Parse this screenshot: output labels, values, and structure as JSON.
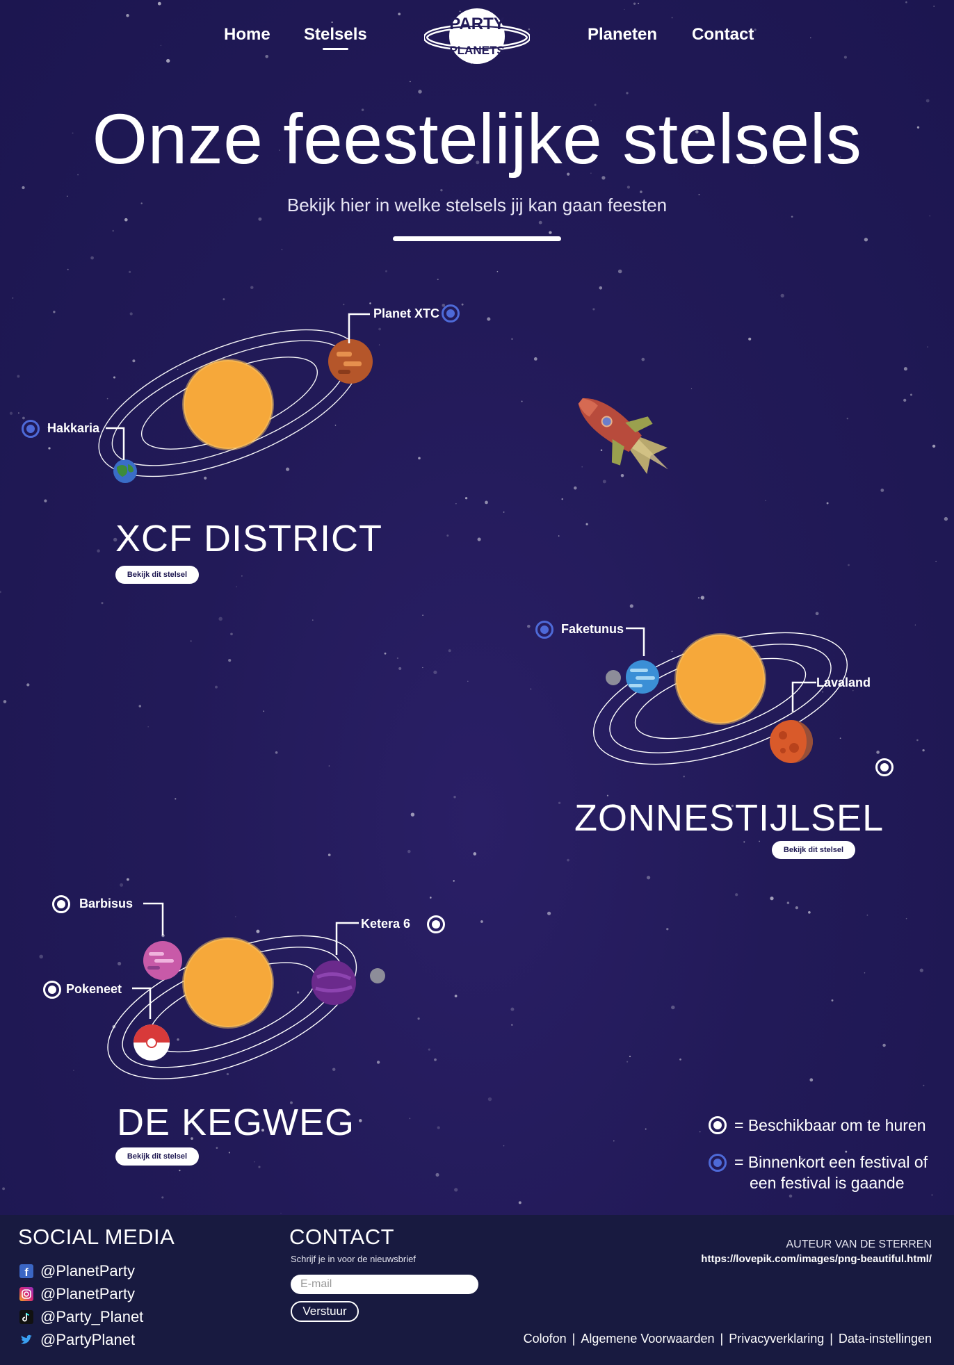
{
  "nav": {
    "home": "Home",
    "stelsels": "Stelsels",
    "planeten": "Planeten",
    "contact": "Contact",
    "logo_line1": "PARTY",
    "logo_line2": "PLANETS"
  },
  "hero": {
    "title": "Onze feestelijke stelsels",
    "subtitle": "Bekijk hier in welke stelsels jij kan gaan feesten"
  },
  "systems": [
    {
      "title": "XCF DISTRICT",
      "button": "Bekijk dit stelsel",
      "planets": [
        {
          "name": "Planet XTC",
          "marker": "soon"
        },
        {
          "name": "Hakkaria",
          "marker": "soon"
        }
      ]
    },
    {
      "title": "ZONNESTIJLSEL",
      "button": "Bekijk dit stelsel",
      "planets": [
        {
          "name": "Faketunus",
          "marker": "soon"
        },
        {
          "name": "Lavaland",
          "marker": "rent"
        }
      ]
    },
    {
      "title": "DE KEGWEG",
      "button": "Bekijk dit stelsel",
      "planets": [
        {
          "name": "Barbisus",
          "marker": "rent"
        },
        {
          "name": "Pokeneet",
          "marker": "rent"
        },
        {
          "name": "Ketera 6",
          "marker": "rent"
        }
      ]
    }
  ],
  "legend": {
    "rent": "= Beschikbaar om te huren",
    "soon_line1": "= Binnenkort een festival of",
    "soon_line2": "een festival is gaande"
  },
  "footer": {
    "social_title": "SOCIAL MEDIA",
    "social": [
      {
        "icon": "facebook-icon",
        "handle": "@PlanetParty"
      },
      {
        "icon": "instagram-icon",
        "handle": "@PlanetParty"
      },
      {
        "icon": "tiktok-icon",
        "handle": "@Party_Planet"
      },
      {
        "icon": "twitter-icon",
        "handle": "@PartyPlanet"
      }
    ],
    "contact_title": "CONTACT",
    "newsletter": "Schrijf je in voor de nieuwsbrief",
    "email_placeholder": "E-mail",
    "send": "Verstuur",
    "author_title": "AUTEUR VAN DE STERREN",
    "author_url": "https://lovepik.com/images/png-beautiful.html/",
    "links": [
      "Colofon",
      "Algemene Voorwaarden",
      "Privacyverklaring",
      "Data-instellingen"
    ]
  },
  "colors": {
    "background": "#221a58",
    "footer": "#181a40",
    "sun": "#f6a83a",
    "marker_soon": "#4e6ad8",
    "marker_rent": "#ffffff"
  }
}
